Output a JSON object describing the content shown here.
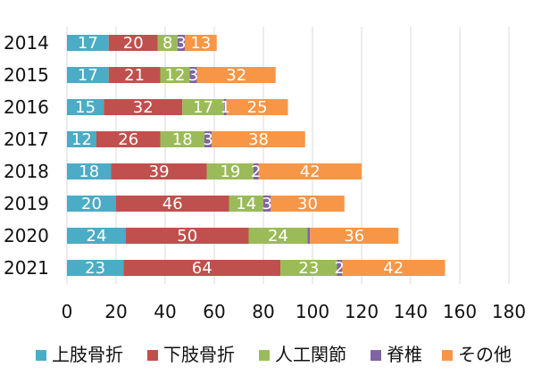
{
  "chart_data": {
    "type": "bar",
    "orientation": "horizontal",
    "stacked": true,
    "categories": [
      "2014",
      "2015",
      "2016",
      "2017",
      "2018",
      "2019",
      "2020",
      "2021"
    ],
    "series": [
      {
        "name": "上肢骨折",
        "color": "#4bacc6",
        "values": [
          17,
          17,
          15,
          12,
          18,
          20,
          24,
          23
        ]
      },
      {
        "name": "下肢骨折",
        "color": "#c0504d",
        "values": [
          20,
          21,
          32,
          26,
          39,
          46,
          50,
          64
        ]
      },
      {
        "name": "人工関節",
        "color": "#9bbb59",
        "values": [
          8,
          12,
          17,
          18,
          19,
          14,
          24,
          23
        ]
      },
      {
        "name": "脊椎",
        "color": "#8064a2",
        "values": [
          3,
          3,
          1,
          3,
          2,
          3,
          1,
          2
        ]
      },
      {
        "name": "その他",
        "color": "#f79646",
        "values": [
          13,
          32,
          25,
          38,
          42,
          30,
          36,
          42
        ]
      }
    ],
    "data_labels": [
      [
        "17",
        "20",
        "8",
        "3",
        "13"
      ],
      [
        "17",
        "21",
        "12",
        "3",
        "32"
      ],
      [
        "15",
        "32",
        "17",
        "1",
        "25"
      ],
      [
        "12",
        "26",
        "18",
        "3",
        "38"
      ],
      [
        "18",
        "39",
        "19",
        "2",
        "42"
      ],
      [
        "20",
        "46",
        "14",
        "3",
        "30"
      ],
      [
        "24",
        "50",
        "24",
        "",
        "36"
      ],
      [
        "23",
        "64",
        "23",
        "2",
        "42"
      ]
    ],
    "xlim": [
      0,
      180
    ],
    "xticks": [
      "0",
      "20",
      "40",
      "60",
      "80",
      "100",
      "120",
      "140",
      "160",
      "180"
    ],
    "grid": "vertical",
    "legend": "bottom"
  }
}
